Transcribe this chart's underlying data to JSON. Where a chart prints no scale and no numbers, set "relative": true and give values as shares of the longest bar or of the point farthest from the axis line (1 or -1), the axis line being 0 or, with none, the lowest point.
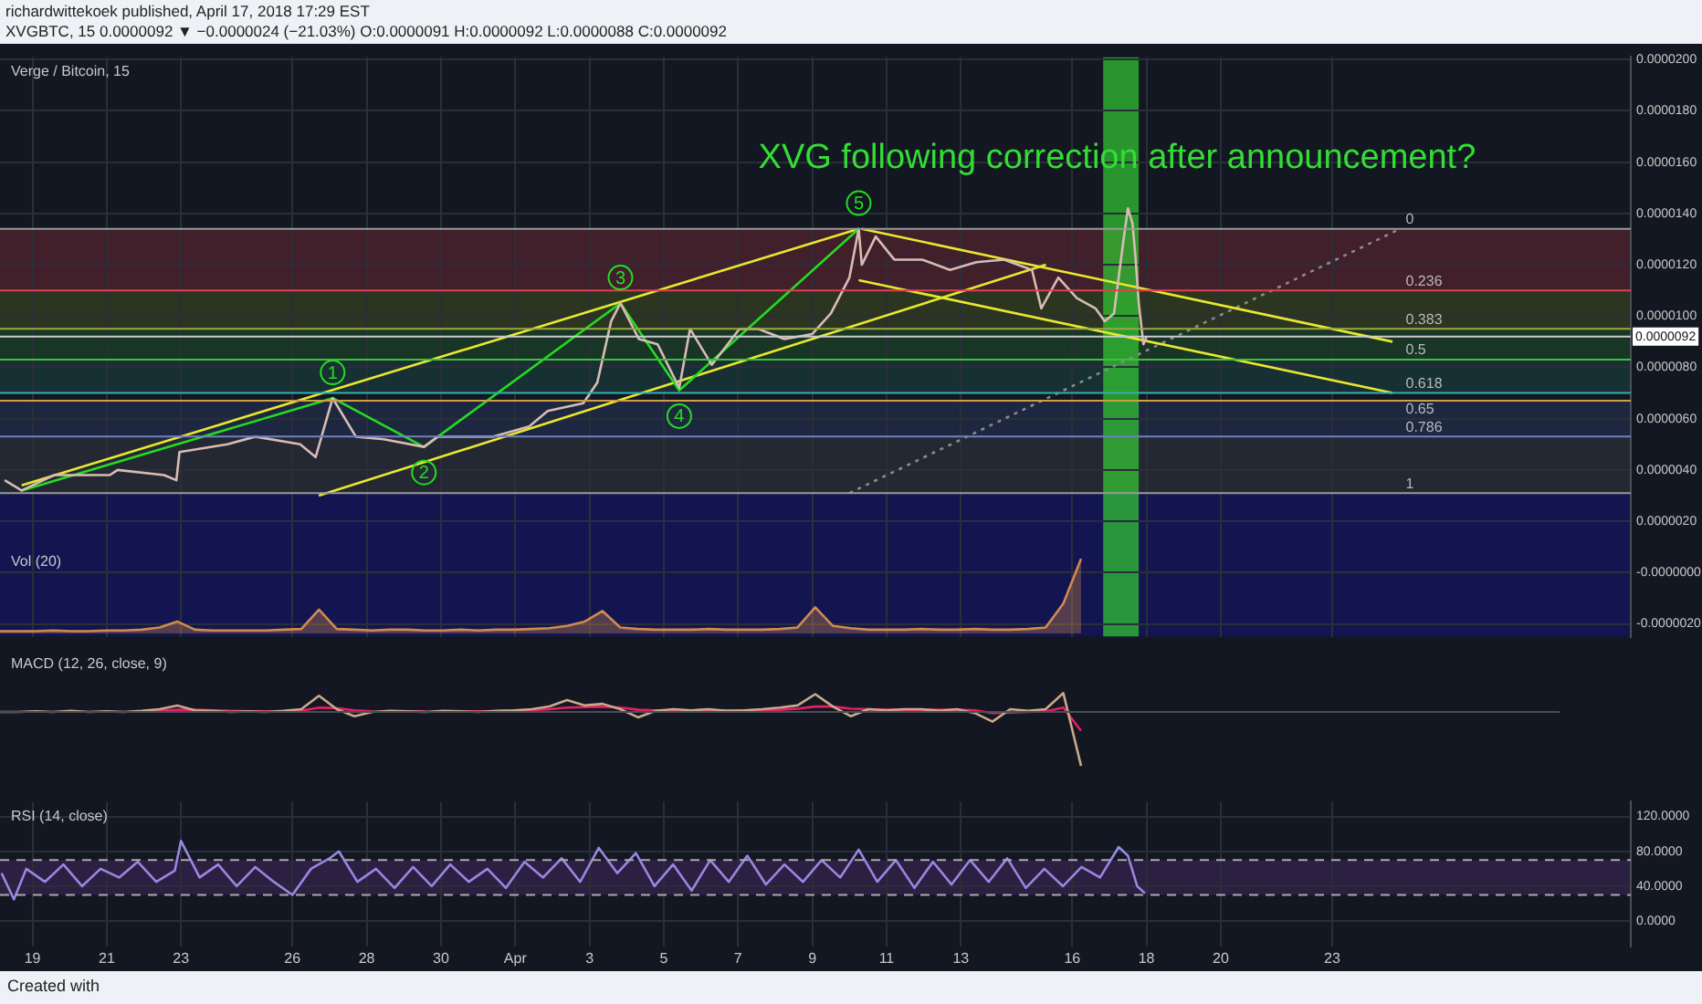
{
  "chart_data": [
    {
      "type": "line",
      "title": "XVG following correction after announcement?",
      "subtitle": "Verge / Bitcoin, 15",
      "annotations": [
        "richardwittekoek published, April 17, 2018 17:29 EST",
        "XVGBTC, 15 0.0000092 ▼ −0.0000024 (−21.03%) O:0.0000091 H:0.0000092 L:0.0000088 C:0.0000092",
        {
          "text": "1",
          "x": "2018-03-27T02:00",
          "y": 7.8e-06
        },
        {
          "text": "2",
          "x": "2018-03-29T13:00",
          "y": 3.9e-06
        },
        {
          "text": "3",
          "x": "2018-04-03T20:00",
          "y": 1.15e-05
        },
        {
          "text": "4",
          "x": "2018-04-05T10:00",
          "y": 6.1e-06
        },
        {
          "text": "5",
          "x": "2018-04-10T06:00",
          "y": 1.44e-05
        },
        {
          "text": "0",
          "x": "2018-04-24T20:00",
          "y": 1.34e-05
        },
        {
          "text": "0.236",
          "x": "2018-04-24T20:00",
          "y": 1.1e-05
        },
        {
          "text": "0.383",
          "x": "2018-04-24T20:00",
          "y": 9.5e-06
        },
        {
          "text": "0.5",
          "x": "2018-04-24T20:00",
          "y": 8.3e-06
        },
        {
          "text": "0.618",
          "x": "2018-04-24T20:00",
          "y": 7e-06
        },
        {
          "text": "0.65",
          "x": "2018-04-24T20:00",
          "y": 6.7e-06
        },
        {
          "text": "0.786",
          "x": "2018-04-24T20:00",
          "y": 5.3e-06
        },
        {
          "text": "1",
          "x": "2018-04-24T20:00",
          "y": 3.1e-06
        }
      ],
      "xlim": [
        "2018-03-18T03:00",
        "2018-05-01T01:00"
      ],
      "xticks": [
        {
          "value": "2018-03-19",
          "label": null
        },
        {
          "value": "2018-03-21",
          "label": null
        },
        {
          "value": "2018-03-23",
          "label": null
        },
        {
          "value": "2018-03-26",
          "label": null
        },
        {
          "value": "2018-03-28",
          "label": null
        },
        {
          "value": "2018-03-30",
          "label": null
        },
        {
          "value": "2018-04-01",
          "label": null
        },
        {
          "value": "2018-04-03",
          "label": null
        },
        {
          "value": "2018-04-05",
          "label": null
        },
        {
          "value": "2018-04-07",
          "label": null
        },
        {
          "value": "2018-04-09",
          "label": null
        },
        {
          "value": "2018-04-11",
          "label": null
        },
        {
          "value": "2018-04-13",
          "label": null
        },
        {
          "value": "2018-04-16",
          "label": null
        },
        {
          "value": "2018-04-18",
          "label": null
        },
        {
          "value": "2018-04-20",
          "label": null
        },
        {
          "value": "2018-04-23",
          "label": null
        }
      ],
      "ylim": [
        -2.5e-06,
        2.01e-05
      ],
      "yticks": [
        {
          "value": -2e-06,
          "label": "-0.0000020"
        },
        {
          "value": 0,
          "label": "-0.0000000"
        },
        {
          "value": 2e-06,
          "label": "0.0000020"
        },
        {
          "value": 4e-06,
          "label": "0.0000040"
        },
        {
          "value": 6e-06,
          "label": "0.0000060"
        },
        {
          "value": 8e-06,
          "label": "0.0000080"
        },
        {
          "value": 1e-05,
          "label": "0.0000100"
        },
        {
          "value": 1.2e-05,
          "label": "0.0000120"
        },
        {
          "value": 1.4e-05,
          "label": "0.0000140"
        },
        {
          "value": 1.6e-05,
          "label": "0.0000160"
        },
        {
          "value": 1.8e-05,
          "label": "0.0000180"
        },
        {
          "value": 2e-05,
          "label": "0.0000200"
        }
      ],
      "tick_labels": "y",
      "grid": true,
      "bands": [
        {
          "axis": "y",
          "from": 1.1e-05,
          "to": 1.34e-05,
          "color": "#7a2a38"
        },
        {
          "axis": "y",
          "from": 9.5e-06,
          "to": 1.1e-05,
          "color": "#4a5a20"
        },
        {
          "axis": "y",
          "from": 8.3e-06,
          "to": 9.5e-06,
          "color": "#1f5a2a"
        },
        {
          "axis": "y",
          "from": 7e-06,
          "to": 8.3e-06,
          "color": "#1d4f4a"
        },
        {
          "axis": "y",
          "from": 5.3e-06,
          "to": 6.7e-06,
          "color": "#2a3f66"
        },
        {
          "axis": "y",
          "from": 3.1e-06,
          "to": 5.3e-06,
          "color": "#3a3f4a"
        },
        {
          "axis": "y",
          "from": -2.5e-06,
          "to": 3.1e-06,
          "color": "#14148a"
        },
        {
          "axis": "x",
          "from": "2018-04-16T20:00",
          "to": "2018-04-17T19:00",
          "color": "#33cc33"
        }
      ],
      "ref_lines": [
        {
          "axis": "y",
          "value": 1.34e-05,
          "color": "#9a9a9a"
        },
        {
          "axis": "y",
          "value": 1.1e-05,
          "color": "#e04050"
        },
        {
          "axis": "y",
          "value": 9.5e-06,
          "color": "#9aaa40"
        },
        {
          "axis": "y",
          "value": 8.3e-06,
          "color": "#40c040"
        },
        {
          "axis": "y",
          "value": 7e-06,
          "color": "#30b0b0"
        },
        {
          "axis": "y",
          "value": 6.7e-06,
          "color": "#d0a040"
        },
        {
          "axis": "y",
          "value": 5.3e-06,
          "color": "#7080c0"
        },
        {
          "axis": "y",
          "value": 3.1e-06,
          "color": "#9a9a9a"
        },
        {
          "axis": "y",
          "value": 9.2e-06,
          "label": "0.0000092",
          "color": "#cccccc"
        }
      ],
      "series": [
        {
          "color": "#d8bcb4",
          "x": [
            "2018-03-18T06:00",
            "2018-03-18T17:00",
            "2018-03-19T14:00",
            "2018-03-21T02:00",
            "2018-03-21T07:00",
            "2018-03-22T13:00",
            "2018-03-22T21:00",
            "2018-03-22T23:00",
            "2018-03-24T06:00",
            "2018-03-25T00:00",
            "2018-03-26T05:00",
            "2018-03-26T15:00",
            "2018-03-27T02:00",
            "2018-03-27T17:00",
            "2018-03-28T11:00",
            "2018-03-29T13:00",
            "2018-03-29T22:00",
            "2018-03-31T10:00",
            "2018-04-01T09:00",
            "2018-04-01T21:00",
            "2018-04-02T20:00",
            "2018-04-03T05:00",
            "2018-04-03T14:00",
            "2018-04-03T20:00",
            "2018-04-04T08:00",
            "2018-04-04T20:00",
            "2018-04-05T10:00",
            "2018-04-05T17:00",
            "2018-04-06T07:00",
            "2018-04-07T01:00",
            "2018-04-07T13:00",
            "2018-04-08T06:00",
            "2018-04-09T00:00",
            "2018-04-09T12:00",
            "2018-04-10T00:00",
            "2018-04-10T06:00",
            "2018-04-10T08:00",
            "2018-04-10T17:00",
            "2018-04-11T05:00",
            "2018-04-11T23:00",
            "2018-04-12T17:00",
            "2018-04-13T10:00",
            "2018-04-14T04:00",
            "2018-04-14T22:00",
            "2018-04-15T04:00",
            "2018-04-15T15:00",
            "2018-04-16T03:00",
            "2018-04-16T15:00",
            "2018-04-16T21:00",
            "2018-04-17T03:00",
            "2018-04-17T09:00",
            "2018-04-17T12:00",
            "2018-04-17T15:00",
            "2018-04-17T17:00",
            "2018-04-17T19:00",
            "2018-04-17T22:00",
            "2018-04-18T00:00"
          ],
          "values": [
            3.6e-06,
            3.2e-06,
            3.8e-06,
            3.8e-06,
            4e-06,
            3.8e-06,
            3.6e-06,
            4.7e-06,
            5e-06,
            5.3e-06,
            5e-06,
            4.5e-06,
            6.8e-06,
            5.3e-06,
            5.2e-06,
            4.9e-06,
            5.3e-06,
            5.3e-06,
            5.7e-06,
            6.3e-06,
            6.6e-06,
            7.4e-06,
            9.8e-06,
            1.05e-05,
            9.1e-06,
            8.9e-06,
            7.2e-06,
            9.5e-06,
            8.1e-06,
            9.5e-06,
            9.5e-06,
            9.1e-06,
            9.3e-06,
            1.01e-05,
            1.15e-05,
            1.34e-05,
            1.2e-05,
            1.31e-05,
            1.22e-05,
            1.22e-05,
            1.18e-05,
            1.21e-05,
            1.22e-05,
            1.18e-05,
            1.03e-05,
            1.15e-05,
            1.07e-05,
            1.03e-05,
            9.8e-06,
            1.01e-05,
            1.29e-05,
            1.42e-05,
            1.36e-05,
            1.22e-05,
            1.05e-05,
            8.9e-06,
            9.2e-06
          ]
        },
        {
          "color": "#22dd22",
          "x": [
            "2018-03-18T17:00",
            "2018-03-27T02:00",
            "2018-03-29T13:00",
            "2018-04-03T20:00",
            "2018-04-05T10:00",
            "2018-04-10T06:00"
          ],
          "values": [
            3.2e-06,
            6.8e-06,
            4.9e-06,
            1.05e-05,
            7.1e-06,
            1.34e-05
          ]
        },
        {
          "color": "#e8e830",
          "x": [
            "2018-03-18T17:00",
            "2018-04-10T06:00"
          ],
          "values": [
            3.4e-06,
            1.34e-05
          ]
        },
        {
          "color": "#e8e830",
          "x": [
            "2018-03-26T17:00",
            "2018-04-15T07:00"
          ],
          "values": [
            3e-06,
            1.2e-05
          ]
        },
        {
          "color": "#e8e830",
          "x": [
            "2018-04-10T08:00",
            "2018-04-24T15:00"
          ],
          "values": [
            1.34e-05,
            9e-06
          ]
        },
        {
          "color": "#e8e830",
          "x": [
            "2018-04-10T06:00",
            "2018-04-24T15:00"
          ],
          "values": [
            1.14e-05,
            7e-06
          ]
        },
        {
          "color": "#8a8a8a",
          "line_style": "dotted",
          "x": [
            "2018-04-10T00:00",
            "2018-04-24T20:00"
          ],
          "values": [
            3.1e-06,
            1.34e-05
          ]
        }
      ]
    },
    {
      "type": "area",
      "relative": true,
      "subtitle": "Vol (20)",
      "tick_labels": false,
      "categories": [
        null,
        null,
        null,
        null,
        null,
        null,
        null,
        null,
        null,
        null,
        null,
        null,
        null,
        null,
        null,
        null,
        null,
        null,
        null,
        null,
        null,
        null,
        null,
        null,
        null,
        null,
        null,
        null,
        null,
        null,
        null,
        null,
        null,
        null,
        null,
        null,
        null,
        null,
        null,
        null,
        null,
        null,
        null,
        null,
        null,
        null,
        null,
        null,
        null,
        null,
        null,
        null,
        null,
        null,
        null,
        null,
        null,
        null,
        null,
        null,
        null,
        null,
        null,
        null,
        null,
        null,
        null,
        null,
        null,
        null,
        null,
        null,
        null,
        null,
        null,
        null,
        null,
        null,
        null,
        null,
        null,
        null,
        null,
        null,
        null,
        null,
        null,
        null,
        null
      ],
      "series": [
        {
          "color": "#d08a50",
          "values": [
            0.03,
            0.03,
            0.03,
            0.04,
            0.03,
            0.03,
            0.04,
            0.04,
            0.05,
            0.08,
            0.16,
            0.05,
            0.04,
            0.04,
            0.04,
            0.04,
            0.05,
            0.06,
            0.32,
            0.06,
            0.05,
            0.04,
            0.05,
            0.05,
            0.04,
            0.04,
            0.05,
            0.04,
            0.05,
            0.05,
            0.06,
            0.07,
            0.1,
            0.16,
            0.3,
            0.08,
            0.06,
            0.05,
            0.05,
            0.05,
            0.06,
            0.05,
            0.05,
            0.05,
            0.06,
            0.08,
            0.35,
            0.1,
            0.07,
            0.05,
            0.05,
            0.05,
            0.06,
            0.05,
            0.05,
            0.06,
            0.05,
            0.05,
            0.06,
            0.08,
            0.4,
            1,
            null,
            null,
            null,
            null,
            null,
            null,
            null,
            null,
            null,
            null,
            null,
            null,
            null,
            null,
            null,
            null,
            null,
            null,
            null,
            null,
            null,
            null,
            null,
            null,
            null,
            null,
            null
          ]
        }
      ]
    },
    {
      "type": "line",
      "relative": true,
      "subtitle": "MACD (12, 26, close, 9)",
      "tick_labels": false,
      "grid": "x",
      "categories": [
        null,
        null,
        null,
        null,
        null,
        null,
        null,
        null,
        null,
        null,
        null,
        null,
        null,
        null,
        null,
        null,
        null,
        null,
        null,
        null,
        null,
        null,
        null,
        null,
        null,
        null,
        null,
        null,
        null,
        null,
        null,
        null,
        null,
        null,
        null,
        null,
        null,
        null,
        null,
        null,
        null,
        null,
        null,
        null,
        null,
        null,
        null,
        null,
        null,
        null,
        null,
        null,
        null,
        null,
        null,
        null,
        null,
        null,
        null,
        null,
        null,
        null,
        null,
        null,
        null,
        null,
        null,
        null,
        null,
        null,
        null,
        null,
        null,
        null,
        null,
        null,
        null,
        null,
        null,
        null,
        null,
        null,
        null,
        null,
        null,
        null,
        null,
        null,
        null
      ],
      "series": [
        {
          "color": "#c9a98a",
          "values": [
            0,
            0,
            0.01,
            0,
            0.02,
            0,
            0.01,
            0,
            0.02,
            0.05,
            0.12,
            0.03,
            0.02,
            0,
            0.01,
            0,
            0.02,
            0.05,
            0.3,
            0.05,
            -0.08,
            0,
            0.02,
            0.01,
            0,
            0.02,
            0.01,
            0,
            0.02,
            0.03,
            0.05,
            0.1,
            0.22,
            0.12,
            0.15,
            0.05,
            -0.1,
            0.02,
            0.05,
            0.03,
            0.05,
            0.02,
            0.03,
            0.05,
            0.08,
            0.12,
            0.33,
            0.1,
            -0.08,
            0.05,
            0.03,
            0.05,
            0.05,
            0.02,
            0.05,
            -0.02,
            -0.18,
            0.05,
            0.02,
            0.05,
            0.35,
            -1,
            null,
            null,
            null,
            null,
            null,
            null,
            null,
            null,
            null,
            null,
            null,
            null,
            null,
            null,
            null,
            null,
            null,
            null,
            null,
            null,
            null,
            null,
            null,
            null,
            null,
            null,
            null
          ]
        },
        {
          "color": "#e91e63",
          "values": [
            null,
            null,
            null,
            null,
            null,
            null,
            null,
            null,
            0.01,
            0.02,
            0.04,
            0.04,
            0.03,
            0.02,
            0.01,
            0.01,
            0.01,
            0.02,
            0.08,
            0.07,
            0.03,
            0.01,
            null,
            0.01,
            0.01,
            null,
            0.01,
            0.01,
            0.01,
            0.02,
            0.03,
            0.05,
            0.08,
            0.09,
            0.1,
            0.08,
            0.04,
            0.03,
            0.03,
            0.03,
            0.03,
            0.03,
            0.03,
            0.03,
            0.04,
            0.06,
            0.1,
            0.1,
            0.06,
            0.05,
            0.04,
            0.04,
            0.04,
            0.04,
            0.04,
            0.03,
            -0.02,
            -0.01,
            0,
            0.01,
            0.08,
            -0.35,
            null,
            null,
            null,
            null,
            null,
            null,
            null,
            null,
            null,
            null,
            null,
            null,
            null,
            null,
            null,
            null,
            null,
            null,
            null,
            null,
            null,
            null,
            null,
            null,
            null,
            null,
            null
          ]
        }
      ]
    },
    {
      "type": "line",
      "subtitle": "RSI (14, close)",
      "annotations": [
        "Created with"
      ],
      "grid": true,
      "xlim": [
        "2018-03-18T03:00",
        "2018-05-01T01:00"
      ],
      "xticks": [
        {
          "value": "2018-03-19",
          "label": "19"
        },
        {
          "value": "2018-03-21",
          "label": "21"
        },
        {
          "value": "2018-03-23",
          "label": "23"
        },
        {
          "value": "2018-03-26",
          "label": "26"
        },
        {
          "value": "2018-03-28",
          "label": "28"
        },
        {
          "value": "2018-03-30",
          "label": "30"
        },
        {
          "value": "2018-04-01",
          "label": "Apr"
        },
        {
          "value": "2018-04-03",
          "label": "3"
        },
        {
          "value": "2018-04-05",
          "label": "5"
        },
        {
          "value": "2018-04-07",
          "label": "7"
        },
        {
          "value": "2018-04-09",
          "label": "9"
        },
        {
          "value": "2018-04-11",
          "label": "11"
        },
        {
          "value": "2018-04-13",
          "label": "13"
        },
        {
          "value": "2018-04-16",
          "label": "16"
        },
        {
          "value": "2018-04-18",
          "label": "18"
        },
        {
          "value": "2018-04-20",
          "label": "20"
        },
        {
          "value": "2018-04-23",
          "label": "23"
        }
      ],
      "ylim": [
        -29,
        137
      ],
      "yticks": [
        {
          "value": 0,
          "label": "0.0000"
        },
        {
          "value": 40,
          "label": "40.0000"
        },
        {
          "value": 80,
          "label": "80.0000"
        },
        {
          "value": 120,
          "label": "120.0000"
        }
      ],
      "bands": [
        {
          "axis": "y",
          "from": 30,
          "to": 70,
          "color": "#4a2a6a"
        }
      ],
      "ref_lines": [
        {
          "axis": "y",
          "value": 70,
          "color": "#aaaaaa",
          "line_style": "dashed"
        },
        {
          "axis": "y",
          "value": 30,
          "color": "#aaaaaa",
          "line_style": "dashed"
        }
      ],
      "series": [
        {
          "color": "#9a86e0",
          "x": [
            "2018-03-18T04:00",
            "2018-03-18T12:00",
            "2018-03-18T20:00",
            "2018-03-19T08:00",
            "2018-03-19T20:00",
            "2018-03-20T08:00",
            "2018-03-20T20:00",
            "2018-03-21T08:00",
            "2018-03-21T20:00",
            "2018-03-22T08:00",
            "2018-03-22T20:00",
            "2018-03-23T00:00",
            "2018-03-23T12:00",
            "2018-03-24T00:00",
            "2018-03-24T12:00",
            "2018-03-25T00:00",
            "2018-03-25T12:00",
            "2018-03-26T00:00",
            "2018-03-26T12:00",
            "2018-03-27T00:00",
            "2018-03-27T06:00",
            "2018-03-27T18:00",
            "2018-03-28T06:00",
            "2018-03-28T18:00",
            "2018-03-29T06:00",
            "2018-03-29T18:00",
            "2018-03-30T06:00",
            "2018-03-30T18:00",
            "2018-03-31T06:00",
            "2018-03-31T18:00",
            "2018-04-01T06:00",
            "2018-04-01T18:00",
            "2018-04-02T06:00",
            "2018-04-02T18:00",
            "2018-04-03T06:00",
            "2018-04-03T18:00",
            "2018-04-04T06:00",
            "2018-04-04T18:00",
            "2018-04-05T06:00",
            "2018-04-05T18:00",
            "2018-04-06T06:00",
            "2018-04-06T18:00",
            "2018-04-07T06:00",
            "2018-04-07T18:00",
            "2018-04-08T06:00",
            "2018-04-08T18:00",
            "2018-04-09T06:00",
            "2018-04-09T18:00",
            "2018-04-10T06:00",
            "2018-04-10T18:00",
            "2018-04-11T06:00",
            "2018-04-11T18:00",
            "2018-04-12T06:00",
            "2018-04-12T18:00",
            "2018-04-13T06:00",
            "2018-04-13T18:00",
            "2018-04-14T06:00",
            "2018-04-14T18:00",
            "2018-04-15T06:00",
            "2018-04-15T18:00",
            "2018-04-16T06:00",
            "2018-04-16T18:00",
            "2018-04-17T06:00",
            "2018-04-17T12:00",
            "2018-04-17T18:00",
            "2018-04-17T23:00"
          ],
          "values": [
            55,
            25,
            60,
            45,
            65,
            40,
            60,
            50,
            68,
            45,
            58,
            92,
            50,
            65,
            40,
            62,
            45,
            30,
            60,
            72,
            80,
            45,
            60,
            38,
            62,
            40,
            65,
            45,
            60,
            38,
            68,
            50,
            72,
            45,
            84,
            55,
            78,
            40,
            65,
            35,
            70,
            45,
            75,
            42,
            65,
            45,
            70,
            50,
            82,
            45,
            70,
            38,
            68,
            42,
            70,
            45,
            72,
            38,
            60,
            40,
            62,
            50,
            85,
            75,
            40,
            32
          ]
        }
      ]
    }
  ]
}
